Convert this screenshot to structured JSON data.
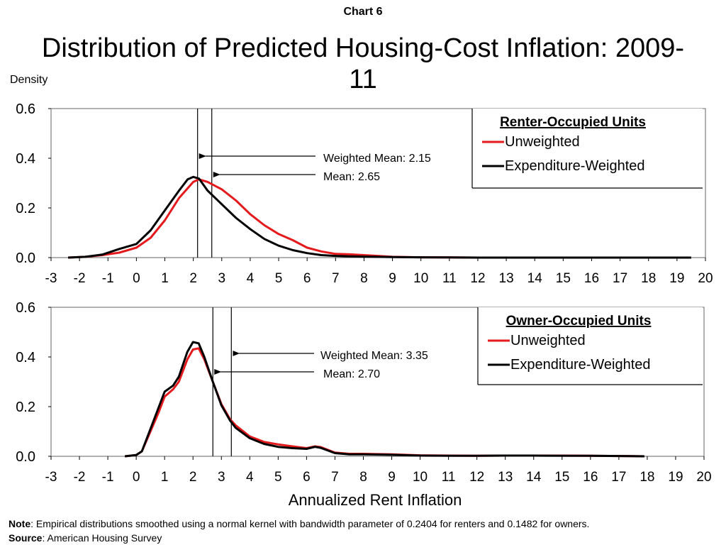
{
  "header": {
    "chart_number": "Chart 6",
    "title": "Distribution of Predicted Housing-Cost Inflation: 2009-11",
    "y_axis_label": "Density",
    "x_axis_title": "Annualized Rent Inflation"
  },
  "footer": {
    "note_label": "Note",
    "note_text": ": Empirical distributions smoothed using a normal kernel with bandwidth parameter of  0.2404 for renters and 0.1482 for owners.",
    "source_label": "Source",
    "source_text": ": American Housing Survey"
  },
  "colors": {
    "unweighted": "#e41a1c",
    "weighted": "#000000",
    "axis": "#000000"
  },
  "chart_data": [
    {
      "type": "line",
      "panel_title": "Renter-Occupied Units",
      "xlim": [
        -3,
        20
      ],
      "ylim": [
        0,
        0.6
      ],
      "x_ticks": [
        -3,
        -2,
        -1,
        0,
        1,
        2,
        3,
        4,
        5,
        6,
        7,
        8,
        9,
        10,
        11,
        12,
        13,
        14,
        15,
        16,
        17,
        18,
        19,
        20
      ],
      "y_ticks": [
        "0.0",
        "0.2",
        "0.4",
        "0.6"
      ],
      "legend_position": "top-right",
      "series": [
        {
          "name": "Unweighted",
          "color": "#e41a1c",
          "points": [
            [
              -2.4,
              0
            ],
            [
              -1.8,
              0.003
            ],
            [
              -1.2,
              0.01
            ],
            [
              -0.6,
              0.02
            ],
            [
              0,
              0.04
            ],
            [
              0.5,
              0.08
            ],
            [
              1,
              0.15
            ],
            [
              1.5,
              0.24
            ],
            [
              2,
              0.305
            ],
            [
              2.2,
              0.315
            ],
            [
              2.5,
              0.305
            ],
            [
              3,
              0.275
            ],
            [
              3.5,
              0.23
            ],
            [
              4,
              0.175
            ],
            [
              4.5,
              0.13
            ],
            [
              5,
              0.095
            ],
            [
              5.5,
              0.07
            ],
            [
              6,
              0.04
            ],
            [
              6.5,
              0.025
            ],
            [
              7,
              0.015
            ],
            [
              7.5,
              0.013
            ],
            [
              8,
              0.01
            ],
            [
              9,
              0.003
            ],
            [
              10,
              0.001
            ],
            [
              12,
              0
            ],
            [
              19.5,
              0
            ]
          ]
        },
        {
          "name": "Expenditure-Weighted",
          "color": "#000000",
          "points": [
            [
              -2.4,
              0
            ],
            [
              -1.8,
              0.003
            ],
            [
              -1.2,
              0.012
            ],
            [
              -0.6,
              0.035
            ],
            [
              0,
              0.055
            ],
            [
              0.5,
              0.11
            ],
            [
              1,
              0.19
            ],
            [
              1.5,
              0.27
            ],
            [
              1.8,
              0.315
            ],
            [
              2,
              0.325
            ],
            [
              2.2,
              0.318
            ],
            [
              2.5,
              0.27
            ],
            [
              3,
              0.215
            ],
            [
              3.5,
              0.16
            ],
            [
              4,
              0.115
            ],
            [
              4.5,
              0.075
            ],
            [
              5,
              0.048
            ],
            [
              5.5,
              0.03
            ],
            [
              6,
              0.018
            ],
            [
              6.5,
              0.01
            ],
            [
              7,
              0.007
            ],
            [
              7.5,
              0.005
            ],
            [
              8,
              0.004
            ],
            [
              9,
              0.002
            ],
            [
              10,
              0.001
            ],
            [
              12,
              0
            ],
            [
              19.5,
              0
            ]
          ]
        }
      ],
      "reference_lines": [
        {
          "label": "Weighted Mean: 2.15",
          "x": 2.15
        },
        {
          "label": "Mean: 2.65",
          "x": 2.65
        }
      ]
    },
    {
      "type": "line",
      "panel_title": "Owner-Occupied Units",
      "xlim": [
        -3,
        20
      ],
      "ylim": [
        0,
        0.6
      ],
      "x_ticks": [
        -3,
        -2,
        -1,
        0,
        1,
        2,
        3,
        4,
        5,
        6,
        7,
        8,
        9,
        10,
        11,
        12,
        13,
        14,
        15,
        16,
        17,
        18,
        19,
        20
      ],
      "y_ticks": [
        "0.0",
        "0.2",
        "0.4",
        "0.6"
      ],
      "legend_position": "top-right",
      "series": [
        {
          "name": "Unweighted",
          "color": "#e41a1c",
          "points": [
            [
              -0.4,
              0
            ],
            [
              0,
              0.005
            ],
            [
              0.2,
              0.02
            ],
            [
              0.5,
              0.1
            ],
            [
              0.8,
              0.18
            ],
            [
              1,
              0.24
            ],
            [
              1.3,
              0.27
            ],
            [
              1.5,
              0.3
            ],
            [
              1.8,
              0.39
            ],
            [
              2,
              0.43
            ],
            [
              2.2,
              0.435
            ],
            [
              2.4,
              0.39
            ],
            [
              2.7,
              0.3
            ],
            [
              3,
              0.21
            ],
            [
              3.3,
              0.15
            ],
            [
              3.5,
              0.125
            ],
            [
              4,
              0.08
            ],
            [
              4.5,
              0.058
            ],
            [
              5,
              0.048
            ],
            [
              5.5,
              0.04
            ],
            [
              6,
              0.033
            ],
            [
              6.3,
              0.04
            ],
            [
              6.5,
              0.037
            ],
            [
              7,
              0.015
            ],
            [
              7.5,
              0.01
            ],
            [
              8,
              0.01
            ],
            [
              9,
              0.008
            ],
            [
              10,
              0.004
            ],
            [
              11,
              0.003
            ],
            [
              12,
              0.002
            ],
            [
              13,
              0.003
            ],
            [
              14,
              0.003
            ],
            [
              15,
              0.003
            ],
            [
              16,
              0.002
            ],
            [
              17,
              0.001
            ],
            [
              17.9,
              0
            ]
          ]
        },
        {
          "name": "Expenditure-Weighted",
          "color": "#000000",
          "points": [
            [
              -0.4,
              0
            ],
            [
              0,
              0.005
            ],
            [
              0.2,
              0.02
            ],
            [
              0.5,
              0.11
            ],
            [
              0.8,
              0.2
            ],
            [
              1,
              0.26
            ],
            [
              1.3,
              0.285
            ],
            [
              1.5,
              0.32
            ],
            [
              1.8,
              0.42
            ],
            [
              2,
              0.46
            ],
            [
              2.2,
              0.455
            ],
            [
              2.4,
              0.4
            ],
            [
              2.7,
              0.3
            ],
            [
              3,
              0.205
            ],
            [
              3.3,
              0.145
            ],
            [
              3.5,
              0.115
            ],
            [
              4,
              0.073
            ],
            [
              4.5,
              0.05
            ],
            [
              5,
              0.038
            ],
            [
              5.5,
              0.033
            ],
            [
              6,
              0.03
            ],
            [
              6.3,
              0.038
            ],
            [
              6.5,
              0.034
            ],
            [
              7,
              0.013
            ],
            [
              7.5,
              0.008
            ],
            [
              8,
              0.008
            ],
            [
              9,
              0.006
            ],
            [
              10,
              0.003
            ],
            [
              11,
              0.002
            ],
            [
              12,
              0.002
            ],
            [
              13,
              0.003
            ],
            [
              14,
              0.003
            ],
            [
              15,
              0.002
            ],
            [
              16,
              0.002
            ],
            [
              17,
              0.001
            ],
            [
              17.9,
              0
            ]
          ]
        }
      ],
      "reference_lines": [
        {
          "label": "Weighted Mean: 3.35",
          "x": 3.35
        },
        {
          "label": "Mean: 2.70",
          "x": 2.7
        }
      ]
    }
  ]
}
